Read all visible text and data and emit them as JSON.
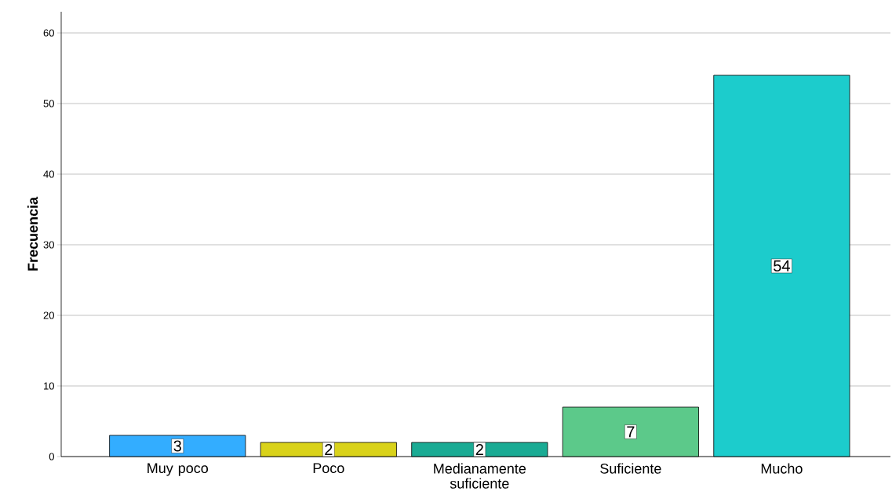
{
  "chart_data": {
    "type": "bar",
    "ylabel": "Frecuencia",
    "categories": [
      "Muy poco",
      "Poco",
      "Medianamente suficiente",
      "Suficiente",
      "Mucho"
    ],
    "values": [
      3,
      2,
      2,
      7,
      54
    ],
    "colors": [
      "#33adff",
      "#d9d21a",
      "#1aab94",
      "#5cc98a",
      "#1ccccc"
    ],
    "ylim": [
      0,
      63
    ],
    "yticks": [
      0,
      10,
      20,
      30,
      40,
      50,
      60
    ],
    "grid": "y",
    "data_labels": true
  }
}
